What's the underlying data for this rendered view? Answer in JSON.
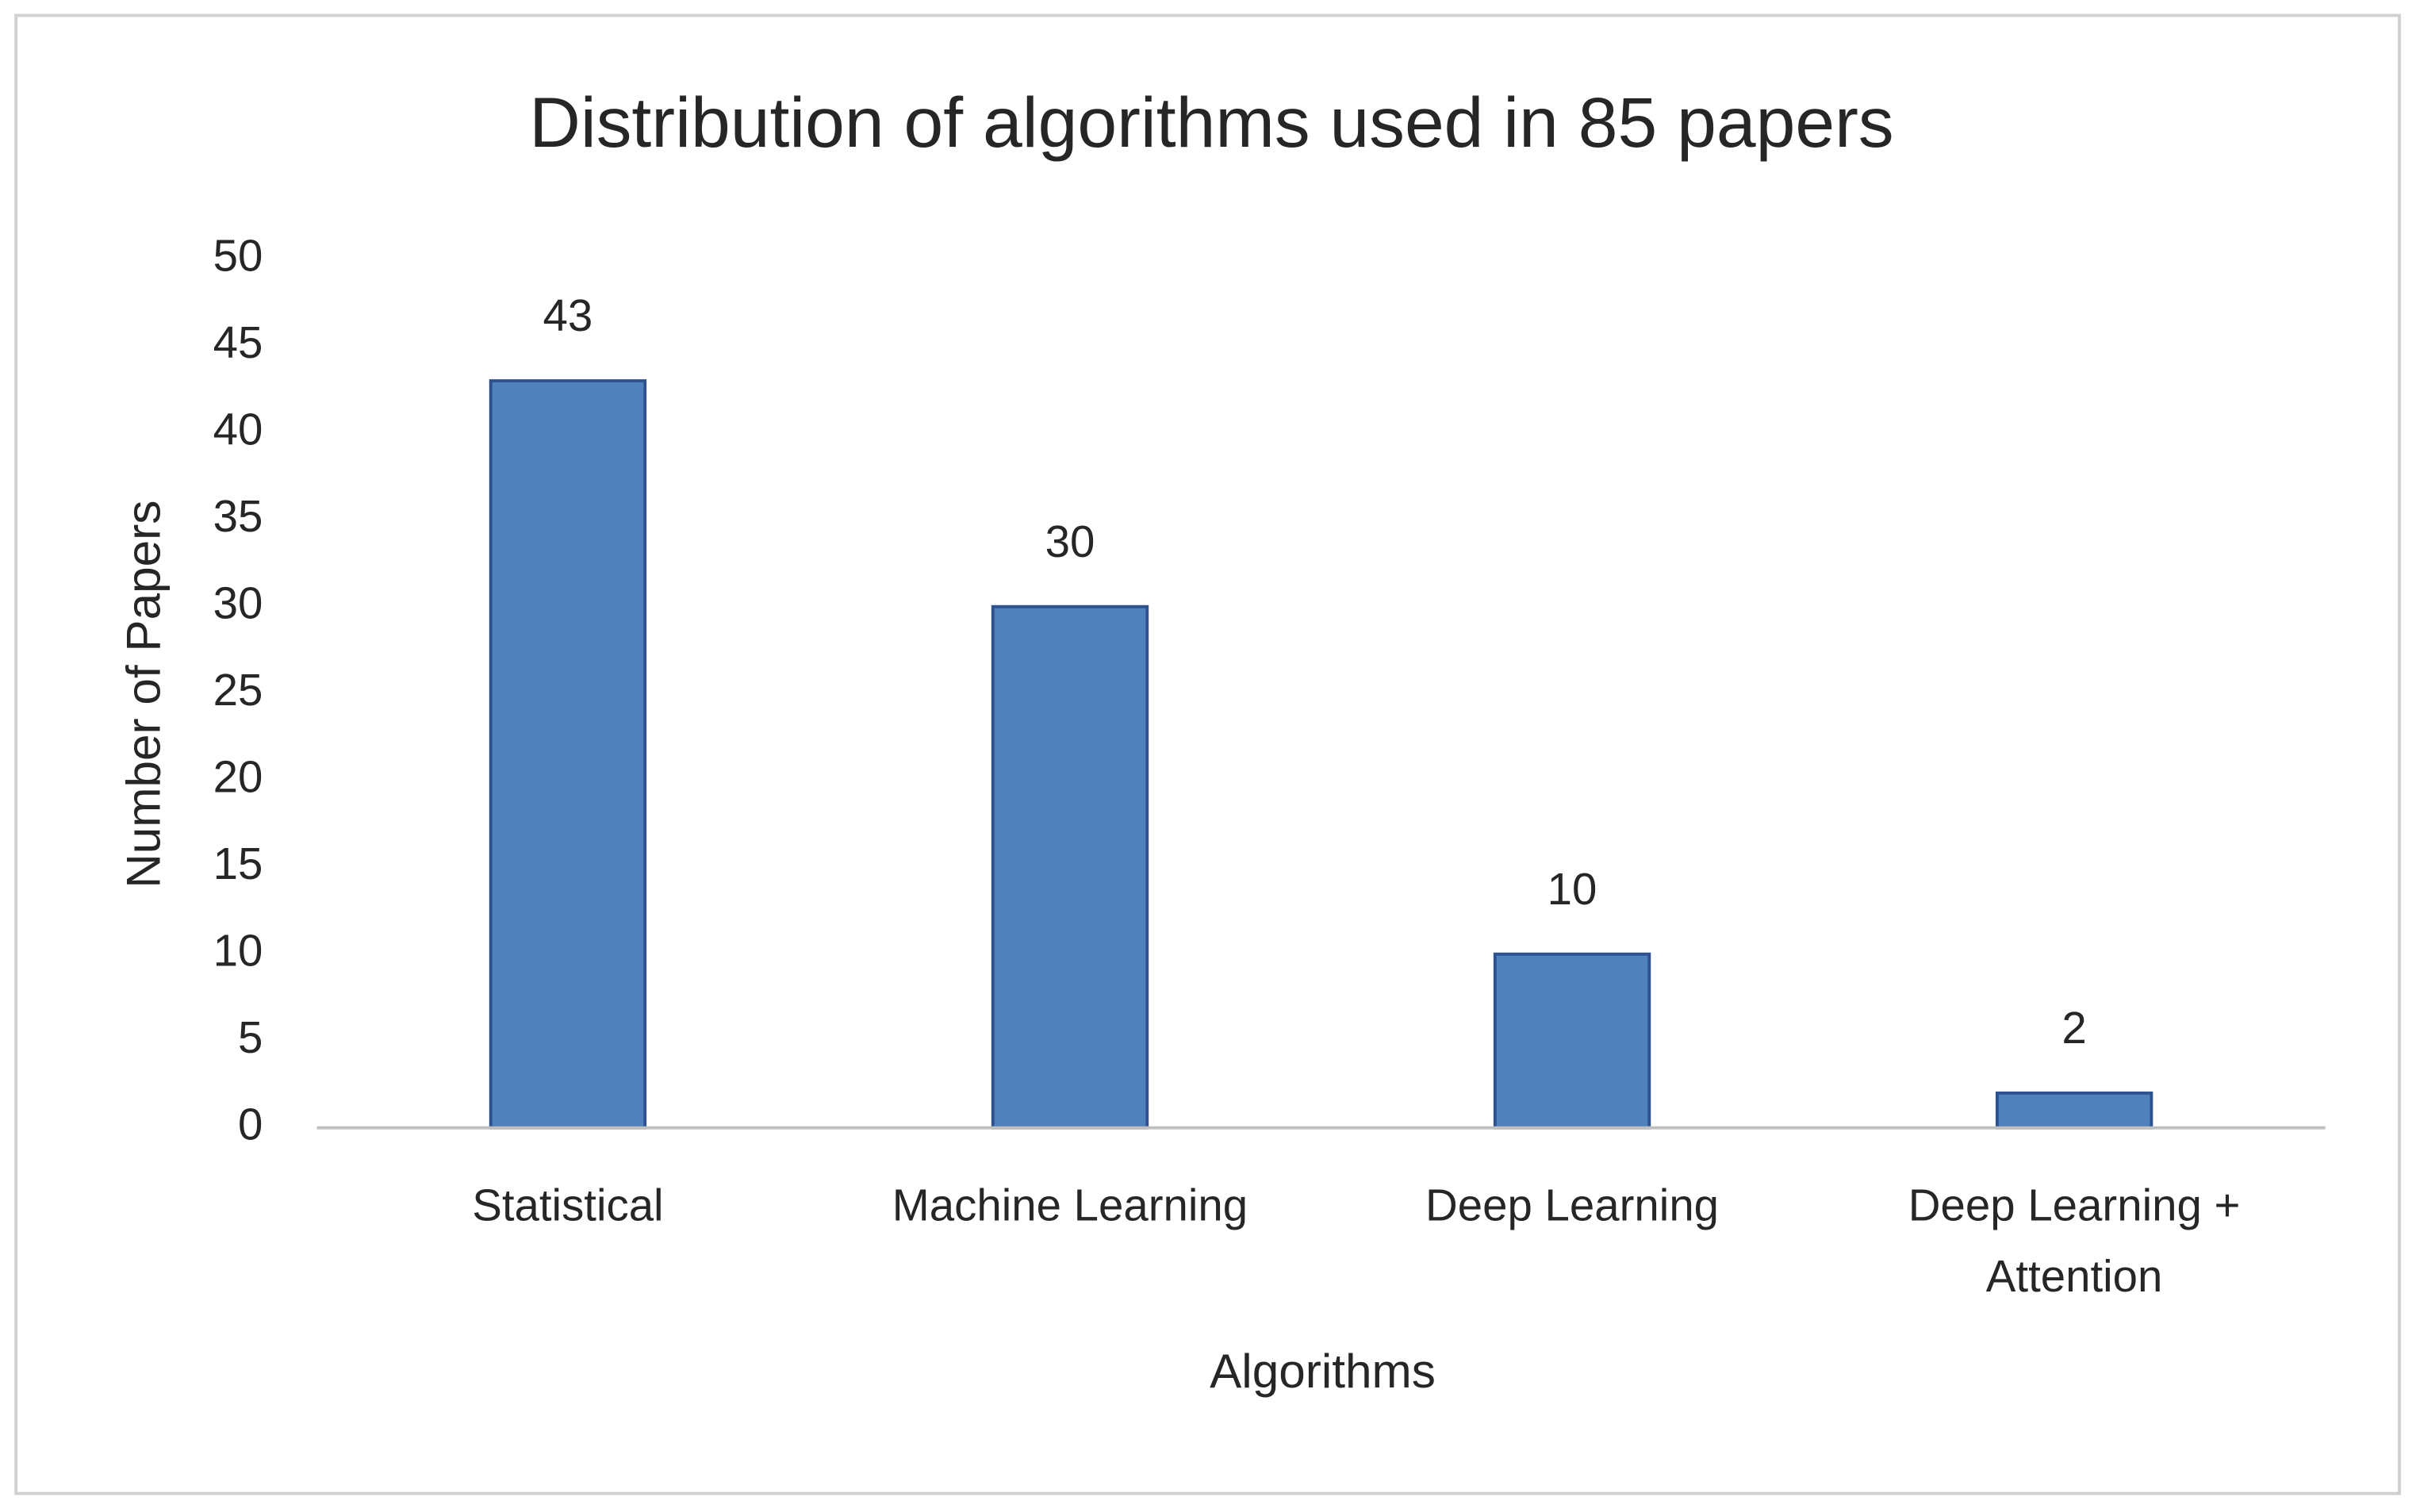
{
  "chart_data": {
    "type": "bar",
    "title": "Distribution of algorithms used in 85 papers",
    "x_label": "Algorithms",
    "y_label": "Number of Papers",
    "categories": [
      "Statistical",
      "Machine Learning",
      "Deep Learning",
      "Deep Learning + Attention"
    ],
    "values": [
      43,
      30,
      10,
      2
    ],
    "color": "#4f81bd",
    "ylim": [
      0,
      50
    ],
    "yticks": [
      0,
      5,
      10,
      15,
      20,
      25,
      30,
      35,
      40,
      45,
      50
    ],
    "grid": false
  }
}
